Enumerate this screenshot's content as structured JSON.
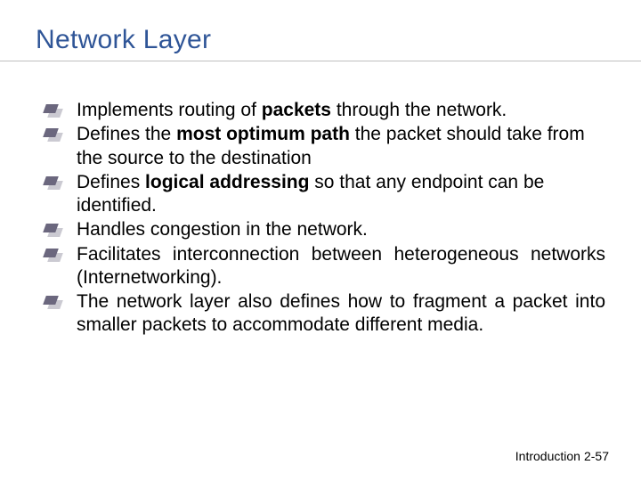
{
  "title": "Network Layer",
  "title_color": "#2f5597",
  "underline_color": "#bfbfbf",
  "bullet_color": "#6b677e",
  "body_fontsize": 21,
  "title_fontsize": 30,
  "bullets": [
    {
      "pre": "Implements routing of ",
      "bold": "packets",
      "post": " through the network.",
      "justify": false
    },
    {
      "pre": "Defines the ",
      "bold": "most optimum path",
      "post": " the packet should take from the source to the destination",
      "justify": false
    },
    {
      "pre": "Defines ",
      "bold": "logical addressing",
      "post": " so that any endpoint can be identified.",
      "justify": false
    },
    {
      "pre": "",
      "bold": "",
      "post": "Handles congestion in the network.",
      "justify": false
    },
    {
      "pre": "",
      "bold": "",
      "post": "Facilitates interconnection between heterogeneous networks (Internetworking).",
      "justify": true
    },
    {
      "pre": "",
      "bold": "",
      "post": "The network layer also defines how to fragment a packet into smaller packets to accommodate different media.",
      "justify": true
    }
  ],
  "footer": {
    "label": "Introduction",
    "page": "2-57"
  }
}
